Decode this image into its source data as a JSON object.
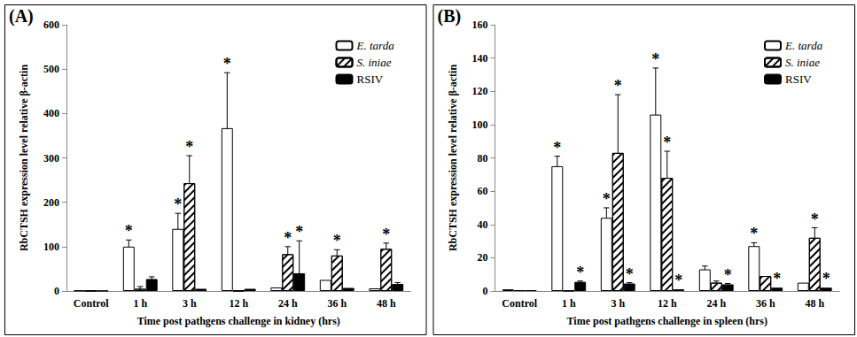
{
  "chart_data": [
    {
      "type": "bar",
      "title": "(A)",
      "x_label": "Time post pathgens challenge in kidney (hrs)",
      "y_label": "RbCTSH expression level relative β-actin",
      "categories": [
        "Control",
        "1 h",
        "3 h",
        "12 h",
        "24 h",
        "36 h",
        "48 h"
      ],
      "ylim": [
        0,
        600
      ],
      "yticks": [
        0,
        100,
        200,
        300,
        400,
        500,
        600
      ],
      "grid": false,
      "legend": "top-right",
      "significance_mark": "*",
      "series": [
        {
          "name": "E. tarda",
          "color": "#ffffff",
          "values": [
            1,
            100,
            140,
            367,
            8,
            25,
            6
          ],
          "errors": [
            0,
            15,
            35,
            125,
            0,
            0,
            0
          ],
          "significant": [
            false,
            true,
            true,
            true,
            false,
            false,
            false
          ]
        },
        {
          "name": "S. iniae",
          "color": "#ffffff",
          "marker": "hatch",
          "values": [
            0.5,
            5,
            243,
            0.5,
            83,
            80,
            95
          ],
          "errors": [
            0,
            5,
            62,
            0,
            17,
            13,
            13
          ],
          "significant": [
            false,
            false,
            true,
            false,
            true,
            true,
            true
          ]
        },
        {
          "name": "RSIV",
          "color": "#000000",
          "values": [
            0.5,
            27,
            5,
            5,
            40,
            7,
            16
          ],
          "errors": [
            0,
            5,
            0,
            0,
            73,
            0,
            3
          ],
          "significant": [
            false,
            false,
            false,
            false,
            true,
            false,
            false
          ]
        }
      ]
    },
    {
      "type": "bar",
      "title": "(B)",
      "x_label": "Time post pathgens challenge in spleen (hrs)",
      "y_label": "RbCTSH expression level relative β-actin",
      "categories": [
        "Control",
        "1 h",
        "3 h",
        "12 h",
        "24 h",
        "36 h",
        "48 h"
      ],
      "ylim": [
        0,
        160
      ],
      "yticks": [
        0,
        20,
        40,
        60,
        80,
        100,
        120,
        140,
        160
      ],
      "grid": false,
      "legend": "top-right",
      "significance_mark": "*",
      "series": [
        {
          "name": "E. tarda",
          "color": "#ffffff",
          "values": [
            1,
            75,
            44,
            106,
            13,
            27,
            5
          ],
          "errors": [
            0,
            6,
            6,
            28,
            2,
            2,
            0
          ],
          "significant": [
            false,
            true,
            true,
            true,
            false,
            true,
            false
          ]
        },
        {
          "name": "S. iniae",
          "color": "#ffffff",
          "marker": "hatch",
          "values": [
            0.5,
            0.3,
            83,
            68,
            5,
            9,
            32
          ],
          "errors": [
            0,
            0,
            35,
            16,
            1,
            0,
            6
          ],
          "significant": [
            false,
            false,
            true,
            true,
            false,
            false,
            true
          ]
        },
        {
          "name": "RSIV",
          "color": "#000000",
          "values": [
            0.5,
            5.5,
            4.5,
            1,
            4,
            2,
            2
          ],
          "errors": [
            0,
            0.5,
            0.5,
            0,
            0.5,
            0,
            0
          ],
          "significant": [
            false,
            true,
            true,
            true,
            true,
            true,
            true
          ]
        }
      ]
    }
  ]
}
